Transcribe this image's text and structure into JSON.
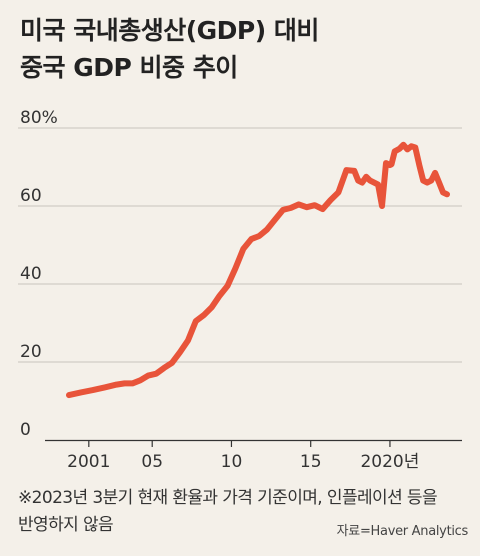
{
  "title": {
    "line1": "미국 국내총생산(GDP) 대비",
    "line2": "중국 GDP 비중 추이"
  },
  "note": {
    "line1": "※2023년 3분기 현재 환율과 가격 기준이며, 인플레이션 등을",
    "line2": "반영하지 않음"
  },
  "source": "자료=Haver Analytics",
  "colors": {
    "line": "#e8543a",
    "grid": "#c8c4bd",
    "axis": "#333333",
    "background": "#f4f0e9"
  },
  "chart_data": {
    "type": "line",
    "ylim": [
      0,
      80
    ],
    "xlim": [
      1999.5,
      2023.9
    ],
    "y_ticks": [
      {
        "value": 80,
        "label": "80%"
      },
      {
        "value": 60,
        "label": "60"
      },
      {
        "value": 40,
        "label": "40"
      },
      {
        "value": 20,
        "label": "20"
      },
      {
        "value": 0,
        "label": "0"
      }
    ],
    "x_ticks": [
      {
        "value": 2001,
        "label": "2001"
      },
      {
        "value": 2005,
        "label": "05"
      },
      {
        "value": 2010,
        "label": "10"
      },
      {
        "value": 2015,
        "label": "15"
      },
      {
        "value": 2020,
        "label": "2020년"
      }
    ],
    "grid": "horizontal",
    "series": [
      {
        "x": [
          1999.75,
          2000.5,
          2001.25,
          2002.0,
          2002.75,
          2003.25,
          2003.75,
          2004.25,
          2004.75,
          2005.25,
          2005.75,
          2006.25,
          2006.75,
          2007.25,
          2007.75,
          2008.25,
          2008.75,
          2009.25,
          2009.75,
          2010.25,
          2010.75,
          2011.25,
          2011.75,
          2012.25,
          2012.75,
          2013.25,
          2013.75,
          2014.25,
          2014.75,
          2015.25,
          2015.75,
          2016.25,
          2016.75,
          2017.25,
          2017.75,
          2018.0,
          2018.25,
          2018.5,
          2018.75,
          2019.0,
          2019.25,
          2019.5,
          2019.75,
          2020.0,
          2020.1,
          2020.3,
          2020.6,
          2020.85,
          2021.1,
          2021.35,
          2021.6,
          2021.85,
          2022.1,
          2022.35,
          2022.6,
          2022.85,
          2023.1,
          2023.35,
          2023.6
        ],
        "values": [
          11.5,
          12.2,
          12.8,
          13.5,
          14.2,
          14.5,
          14.5,
          15.3,
          16.5,
          17.0,
          18.5,
          19.8,
          22.5,
          25.5,
          30.5,
          32.0,
          34.0,
          37.0,
          39.5,
          44.0,
          49.0,
          51.5,
          52.3,
          54.0,
          56.5,
          59.0,
          59.5,
          60.4,
          59.7,
          60.2,
          59.2,
          61.5,
          63.5,
          69.2,
          69.0,
          66.5,
          66.0,
          67.5,
          66.5,
          66.0,
          65.5,
          60.0,
          71.0,
          70.5,
          70.7,
          74.0,
          74.7,
          75.7,
          74.5,
          75.3,
          75.0,
          70.5,
          66.5,
          66.0,
          66.5,
          68.5,
          66.0,
          63.5,
          63.0
        ]
      }
    ]
  }
}
